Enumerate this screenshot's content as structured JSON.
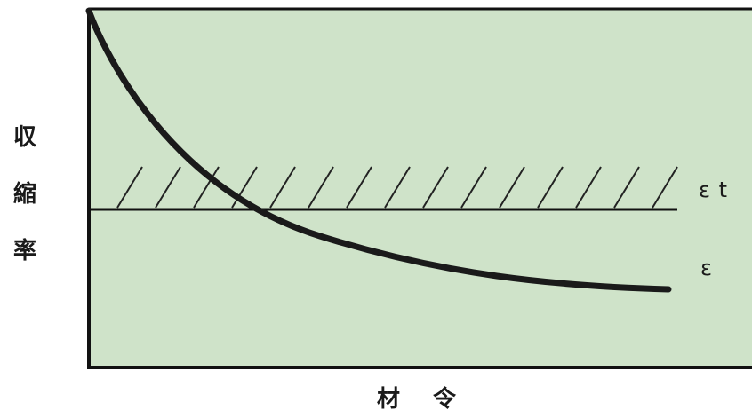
{
  "diagram": {
    "y_axis_label_chars": [
      "収",
      "縮",
      "率"
    ],
    "x_axis_label_chars": [
      "材",
      "令"
    ],
    "threshold_label": "ε t",
    "curve_label": "ε",
    "colors": {
      "plot_background": "#cfe3c9",
      "frame": "#111111",
      "curve": "#1a1a1a",
      "hatch": "#222222"
    }
  }
}
